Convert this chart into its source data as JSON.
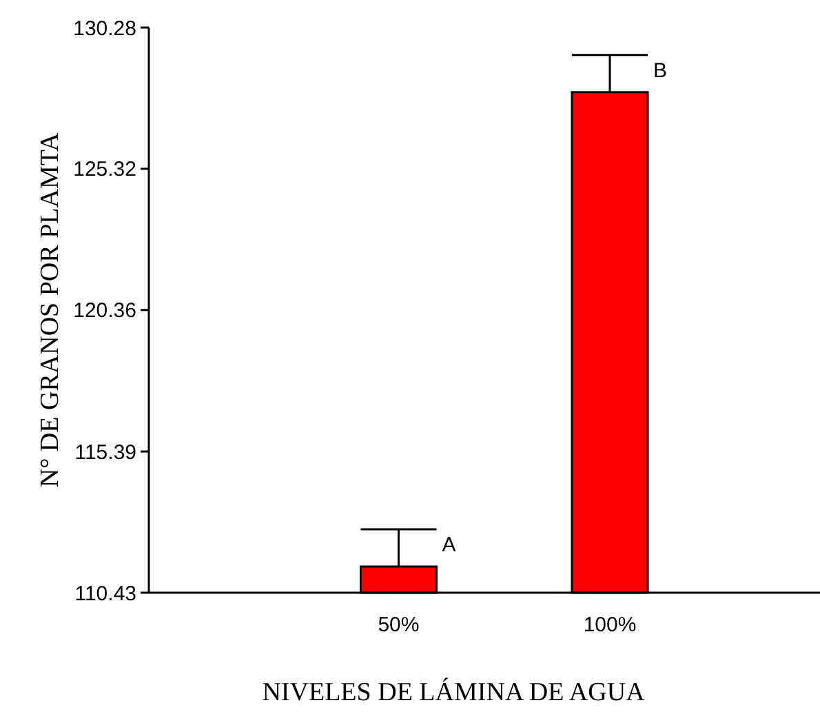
{
  "chart_data": {
    "type": "bar",
    "xlabel": "NIVELES DE LÁMINA DE AGUA",
    "ylabel": "N° DE GRANOS POR PLAMTA",
    "categories": [
      "50%",
      "100%"
    ],
    "series": [
      {
        "color": "#ff0000",
        "values": [
          111.35,
          128.01
        ],
        "errors": [
          [
            111.35,
            112.66
          ],
          [
            128.01,
            129.32
          ]
        ]
      }
    ],
    "ylim": [
      110.43,
      130.28
    ],
    "yticks": [
      110.43,
      115.39,
      120.36,
      125.32,
      130.28
    ],
    "annotations": [
      "A",
      "B"
    ],
    "grid": false
  }
}
